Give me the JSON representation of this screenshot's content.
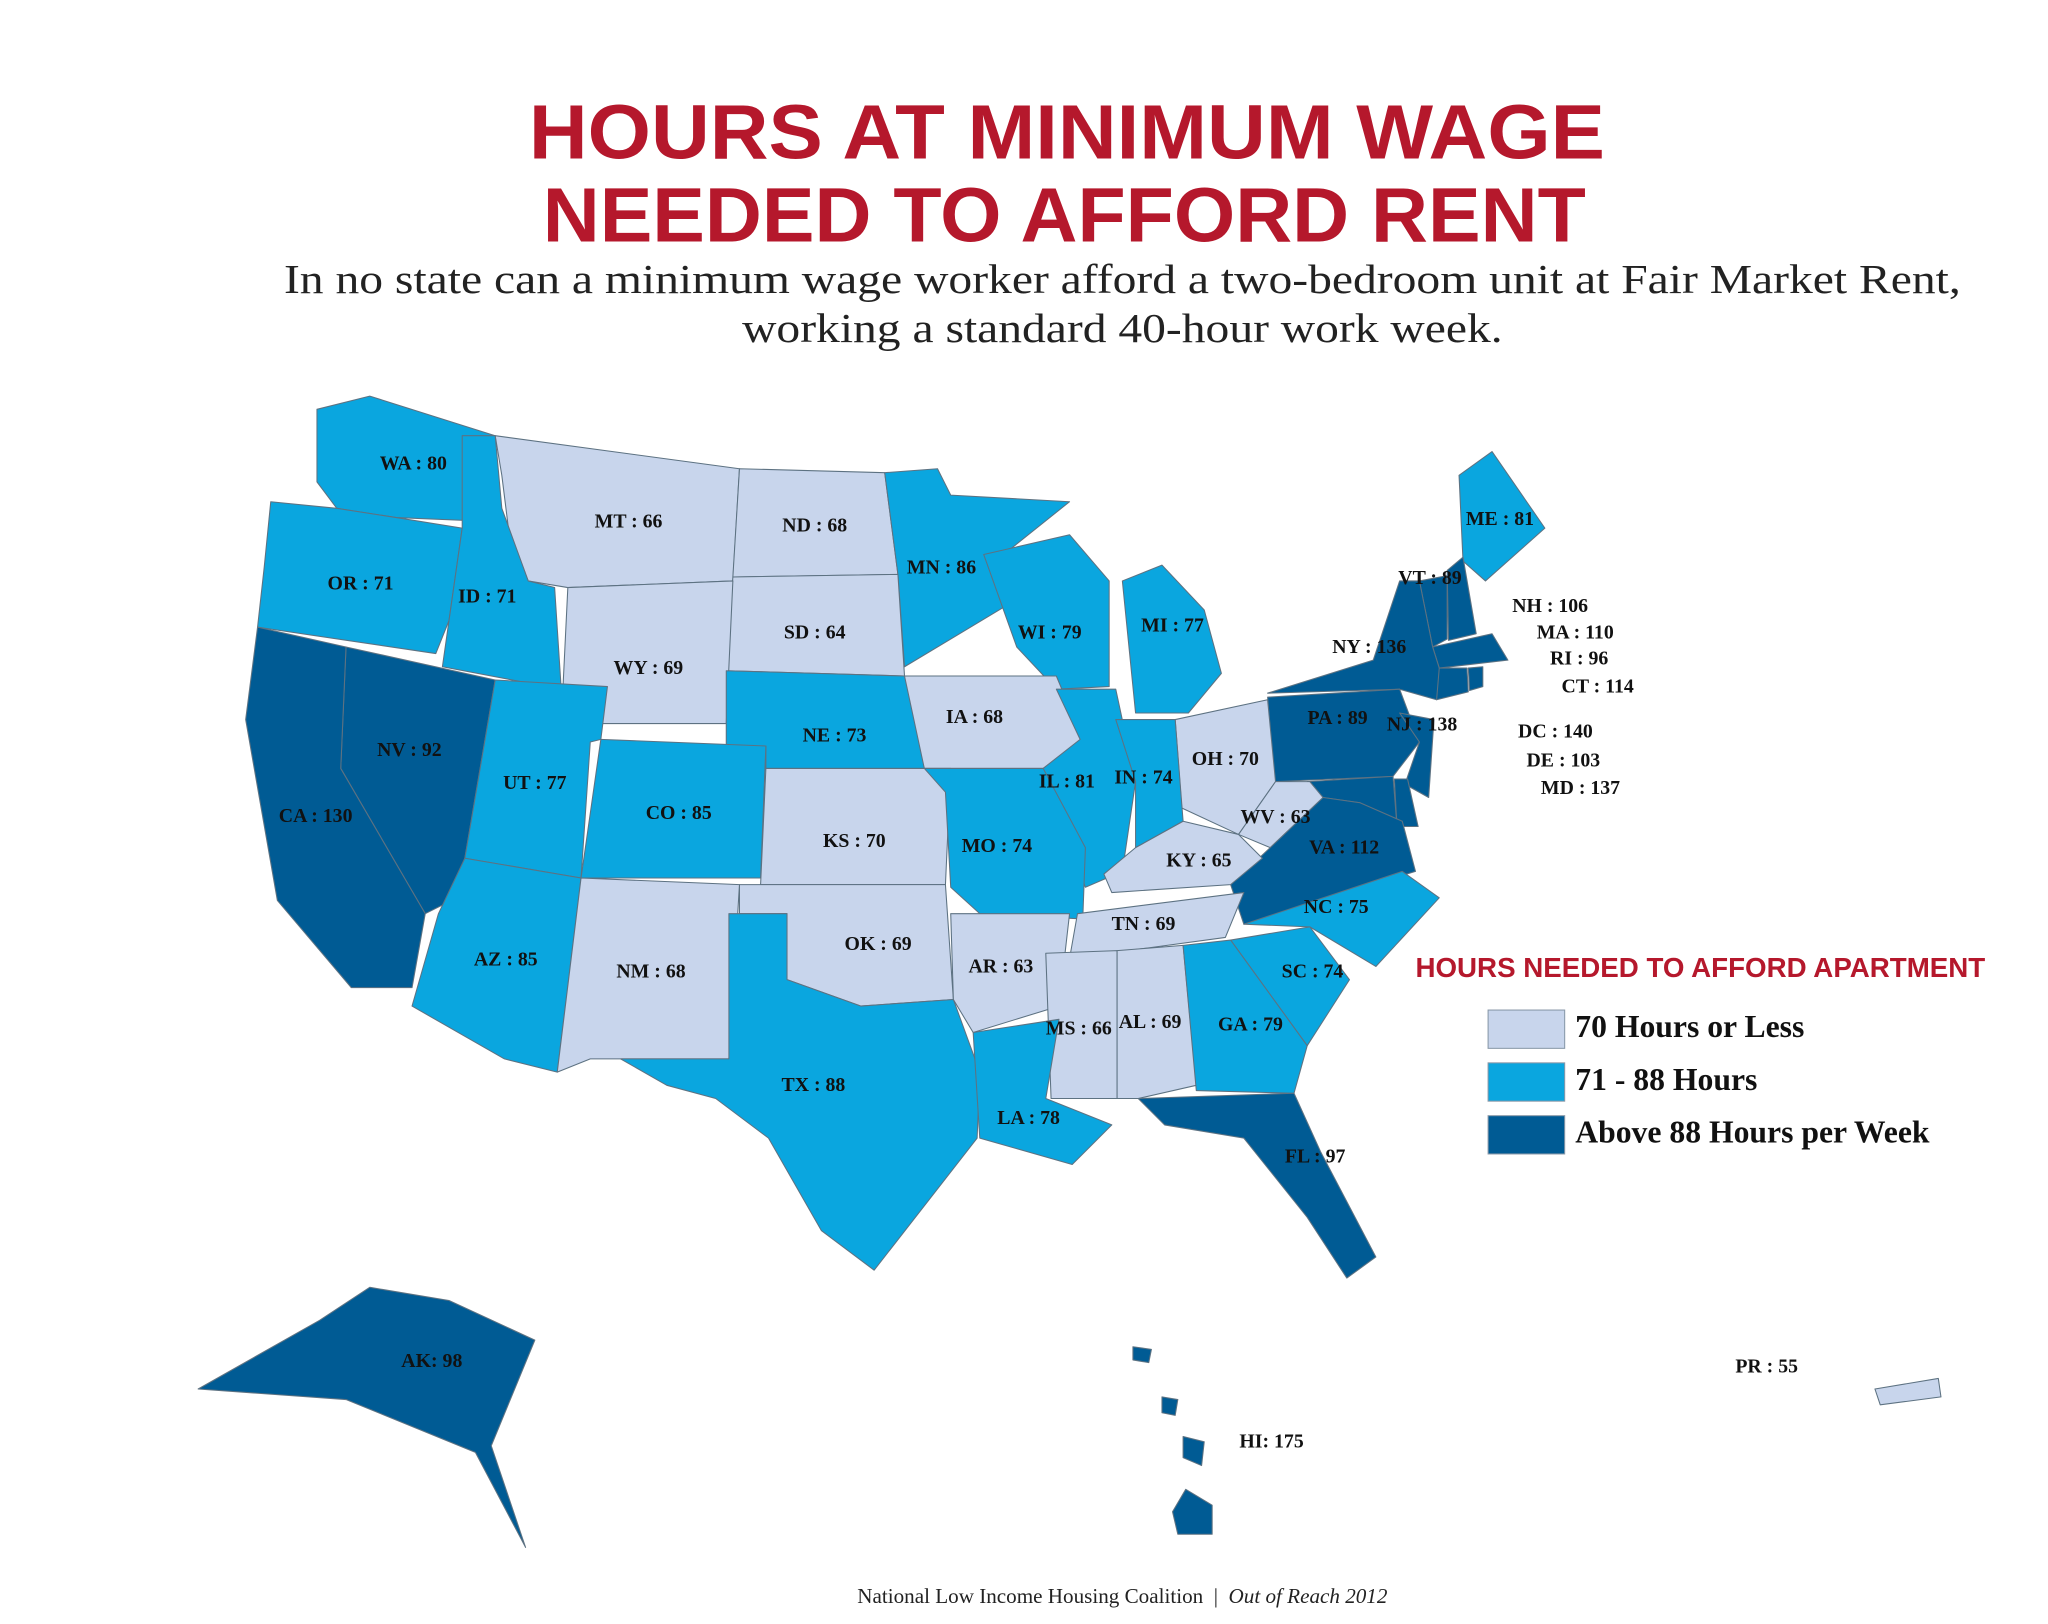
{
  "title": [
    "HOURS AT MINIMUM WAGE",
    "NEEDED TO AFFORD RENT"
  ],
  "subtitle": [
    "In no state can a minimum wage worker afford a two-bedroom unit at Fair Market Rent,",
    "working a standard 40-hour work week."
  ],
  "states": [
    {
      "label": "WA : 80",
      "value": 80
    },
    {
      "label": "MT : 66",
      "value": 66
    },
    {
      "label": "ND : 68",
      "value": 68
    },
    {
      "label": "MN : 86",
      "value": 86
    },
    {
      "label": "ME : 81",
      "value": 81
    },
    {
      "label": "OR : 71",
      "value": 71
    },
    {
      "label": "ID : 71",
      "value": 71
    },
    {
      "label": "VT : 89",
      "value": 89
    },
    {
      "label": "NH : 106",
      "value": 106
    },
    {
      "label": "MA : 110",
      "value": 110
    },
    {
      "label": "RI : 96",
      "value": 96
    },
    {
      "label": "CT : 114",
      "value": 114
    },
    {
      "label": "WI : 79",
      "value": 79
    },
    {
      "label": "MI : 77",
      "value": 77
    },
    {
      "label": "SD : 64",
      "value": 64
    },
    {
      "label": "WY : 69",
      "value": 69
    },
    {
      "label": "NY : 136",
      "value": 136
    },
    {
      "label": "IA : 68",
      "value": 68
    },
    {
      "label": "PA : 89",
      "value": 89
    },
    {
      "label": "NJ : 138",
      "value": 138
    },
    {
      "label": "NE : 73",
      "value": 73
    },
    {
      "label": "NV : 92",
      "value": 92
    },
    {
      "label": "OH : 70",
      "value": 70
    },
    {
      "label": "DC : 140",
      "value": 140
    },
    {
      "label": "DE : 103",
      "value": 103
    },
    {
      "label": "MD : 137",
      "value": 137
    },
    {
      "label": "UT : 77",
      "value": 77
    },
    {
      "label": "IL : 81",
      "value": 81
    },
    {
      "label": "IN : 74",
      "value": 74
    },
    {
      "label": "CO : 85",
      "value": 85
    },
    {
      "label": "CA : 130",
      "value": 130
    },
    {
      "label": "KS : 70",
      "value": 70
    },
    {
      "label": "WV : 63",
      "value": 63
    },
    {
      "label": "MO : 74",
      "value": 74
    },
    {
      "label": "VA : 112",
      "value": 112
    },
    {
      "label": "KY : 65",
      "value": 65
    },
    {
      "label": "NC : 75",
      "value": 75
    },
    {
      "label": "TN : 69",
      "value": 69
    },
    {
      "label": "OK : 69",
      "value": 69
    },
    {
      "label": "AZ : 85",
      "value": 85
    },
    {
      "label": "NM : 68",
      "value": 68
    },
    {
      "label": "AR : 63",
      "value": 63
    },
    {
      "label": "SC : 74",
      "value": 74
    },
    {
      "label": "MS : 66",
      "value": 66
    },
    {
      "label": "AL : 69",
      "value": 69
    },
    {
      "label": "GA : 79",
      "value": 79
    },
    {
      "label": "TX : 88",
      "value": 88
    },
    {
      "label": "LA : 78",
      "value": 78
    },
    {
      "label": "FL : 97",
      "value": 97
    },
    {
      "label": "AK:  98",
      "value": 98
    },
    {
      "label": "HI: 175",
      "value": 175
    },
    {
      "label": "PR : 55",
      "value": 55
    }
  ],
  "legend": {
    "title": "HOURS NEEDED TO AFFORD APARTMENT",
    "items": [
      {
        "label": "70 Hours or Less",
        "color": "#c8d5ec",
        "max": 70
      },
      {
        "label": "71 - 88 Hours",
        "color": "#0aa6df",
        "max": 88
      },
      {
        "label": "Above 88 Hours per Week",
        "color": "#005b94"
      }
    ]
  },
  "footer": {
    "org": "National Low Income Housing Coalition",
    "separator": "|",
    "publication": "Out of Reach 2012"
  }
}
